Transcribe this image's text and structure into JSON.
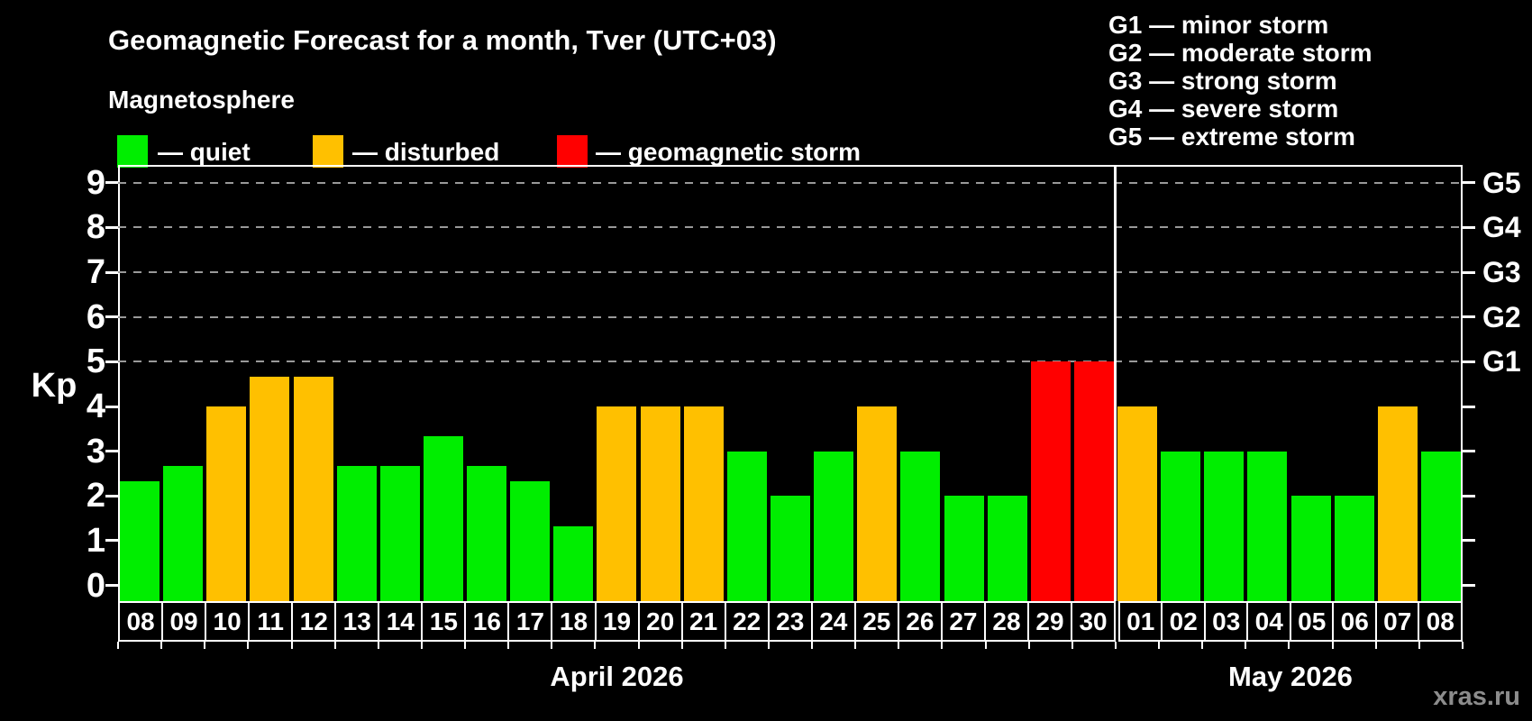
{
  "header": {
    "title": "Geomagnetic Forecast for a month, Tver (UTC+03)",
    "subtitle": "Magnetosphere"
  },
  "legend": {
    "items": [
      {
        "key": "quiet",
        "label": "— quiet"
      },
      {
        "key": "disturbed",
        "label": "— disturbed"
      },
      {
        "key": "storm",
        "label": "— geomagnetic storm"
      }
    ],
    "storm_levels": [
      "G1 — minor storm",
      "G2 — moderate storm",
      "G3 — strong storm",
      "G4 — severe storm",
      "G5 — extreme storm"
    ]
  },
  "footer": {
    "watermark": "xras.ru"
  },
  "chart_data": {
    "type": "bar",
    "ylabel": "Kp",
    "ylim": [
      0,
      9
    ],
    "yticks": [
      0,
      1,
      2,
      3,
      4,
      5,
      6,
      7,
      8,
      9
    ],
    "gridline_levels": [
      5,
      6,
      7,
      8,
      9
    ],
    "grid": "dashed horizontal lines at Kp 5..9 (G1..G5 storm thresholds)",
    "legend_position": "top",
    "g_scale": [
      {
        "label": "G1",
        "kp": 5
      },
      {
        "label": "G2",
        "kp": 6
      },
      {
        "label": "G3",
        "kp": 7
      },
      {
        "label": "G4",
        "kp": 8
      },
      {
        "label": "G5",
        "kp": 9
      }
    ],
    "colors": {
      "quiet": "#00ee00",
      "disturbed": "#ffc000",
      "storm": "#ff0000",
      "grid": "#999999",
      "background": "#000000"
    },
    "months": [
      {
        "label": "April 2026",
        "count": 23
      },
      {
        "label": "May 2026",
        "count": 8
      }
    ],
    "days": [
      {
        "date": "08",
        "kp": 2.33,
        "status": "quiet"
      },
      {
        "date": "09",
        "kp": 2.67,
        "status": "quiet"
      },
      {
        "date": "10",
        "kp": 4.0,
        "status": "disturbed"
      },
      {
        "date": "11",
        "kp": 4.67,
        "status": "disturbed"
      },
      {
        "date": "12",
        "kp": 4.67,
        "status": "disturbed"
      },
      {
        "date": "13",
        "kp": 2.67,
        "status": "quiet"
      },
      {
        "date": "14",
        "kp": 2.67,
        "status": "quiet"
      },
      {
        "date": "15",
        "kp": 3.33,
        "status": "quiet"
      },
      {
        "date": "16",
        "kp": 2.67,
        "status": "quiet"
      },
      {
        "date": "17",
        "kp": 2.33,
        "status": "quiet"
      },
      {
        "date": "18",
        "kp": 1.33,
        "status": "quiet"
      },
      {
        "date": "19",
        "kp": 4.0,
        "status": "disturbed"
      },
      {
        "date": "20",
        "kp": 4.0,
        "status": "disturbed"
      },
      {
        "date": "21",
        "kp": 4.0,
        "status": "disturbed"
      },
      {
        "date": "22",
        "kp": 3.0,
        "status": "quiet"
      },
      {
        "date": "23",
        "kp": 2.0,
        "status": "quiet"
      },
      {
        "date": "24",
        "kp": 3.0,
        "status": "quiet"
      },
      {
        "date": "25",
        "kp": 4.0,
        "status": "disturbed"
      },
      {
        "date": "26",
        "kp": 3.0,
        "status": "quiet"
      },
      {
        "date": "27",
        "kp": 2.0,
        "status": "quiet"
      },
      {
        "date": "28",
        "kp": 2.0,
        "status": "quiet"
      },
      {
        "date": "29",
        "kp": 5.0,
        "status": "storm"
      },
      {
        "date": "30",
        "kp": 5.0,
        "status": "storm"
      },
      {
        "date": "01",
        "kp": 4.0,
        "status": "disturbed"
      },
      {
        "date": "02",
        "kp": 3.0,
        "status": "quiet"
      },
      {
        "date": "03",
        "kp": 3.0,
        "status": "quiet"
      },
      {
        "date": "04",
        "kp": 3.0,
        "status": "quiet"
      },
      {
        "date": "05",
        "kp": 2.0,
        "status": "quiet"
      },
      {
        "date": "06",
        "kp": 2.0,
        "status": "quiet"
      },
      {
        "date": "07",
        "kp": 4.0,
        "status": "disturbed"
      },
      {
        "date": "08",
        "kp": 3.0,
        "status": "quiet"
      }
    ]
  }
}
